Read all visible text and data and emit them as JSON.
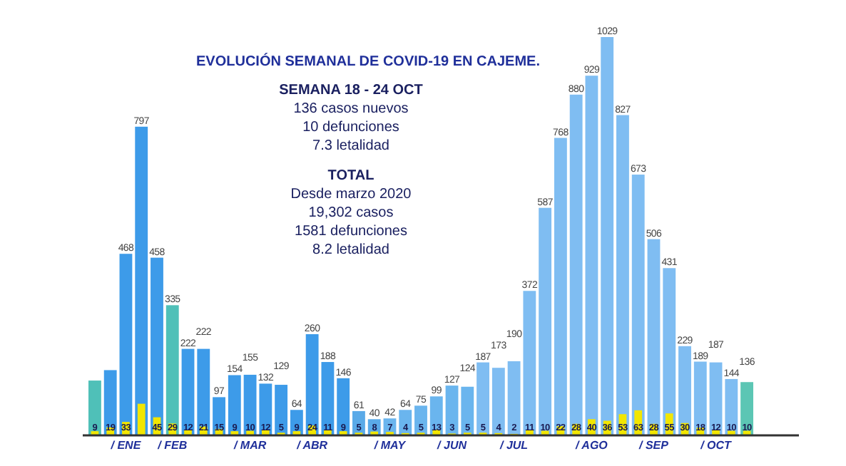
{
  "chart_data": {
    "type": "bar",
    "title": "EVOLUCIÓN SEMANAL DE COVID-19 EN CAJEME.",
    "annotations": [
      "SEMANA 18 - 24 OCT",
      "136 casos nuevos",
      "10 defunciones",
      "7.3 letalidad",
      "TOTAL",
      "Desde marzo 2020",
      "19,302 casos",
      "1581 defunciones",
      "8.2 letalidad"
    ],
    "categories": [
      null,
      null,
      "/ ENE",
      null,
      null,
      "/ FEB",
      null,
      null,
      null,
      null,
      "/ MAR",
      null,
      null,
      null,
      "/ ABR",
      null,
      null,
      null,
      null,
      "/ MAY",
      null,
      null,
      null,
      "/ JUN",
      null,
      null,
      null,
      "/ JUL",
      null,
      null,
      null,
      null,
      "/ AGO",
      null,
      null,
      null,
      "/ SEP",
      null,
      null,
      null,
      "/ OCT",
      null,
      null
    ],
    "series": [
      {
        "colors": [
          "#4fc0b8",
          "#3d9be9",
          "#3d9be9",
          "#3d9be9",
          "#3d9be9",
          "#4fc0b8",
          "#3d9be9",
          "#3d9be9",
          "#3d9be9",
          "#3d9be9",
          "#3d9be9",
          "#3d9be9",
          "#3d9be9",
          "#3d9be9",
          "#3d9be9",
          "#3d9be9",
          "#3d9be9",
          "#5aaae8",
          "#5aaae8",
          "#6ab5ee",
          "#6ab5ee",
          "#6ab5ee",
          "#6ab5ee",
          "#6ab5ee",
          "#6ab5ee",
          "#7fbdf2",
          "#7fbdf2",
          "#7fbdf2",
          "#7fbdf2",
          "#7fbdf2",
          "#7fbdf2",
          "#7fbdf2",
          "#7fbdf2",
          "#7fbdf2",
          "#7fbdf2",
          "#7fbdf2",
          "#7fbdf2",
          "#7fbdf2",
          "#7fbdf2",
          "#7fbdf2",
          "#7fbdf2",
          "#7fbdf2",
          "#5cc6b4"
        ],
        "values": [
          140,
          167,
          468,
          797,
          458,
          335,
          222,
          222,
          97,
          154,
          155,
          132,
          129,
          64,
          260,
          188,
          146,
          61,
          40,
          42,
          64,
          75,
          99,
          127,
          124,
          187,
          173,
          190,
          372,
          587,
          768,
          880,
          929,
          1029,
          827,
          673,
          506,
          431,
          229,
          189,
          187,
          144,
          136
        ],
        "value_labels": [
          null,
          null,
          "468",
          "797",
          "458",
          "335",
          "222",
          "222",
          "97",
          "154",
          "155",
          "132",
          "129",
          "64",
          "260",
          "188",
          "146",
          "61",
          "40",
          "42",
          "64",
          "75",
          "99",
          "127",
          "124",
          "187",
          "173",
          "190",
          "372",
          "587",
          "768",
          "880",
          "929",
          "1029",
          "827",
          "673",
          "506",
          "431",
          "229",
          "189",
          "187",
          "144",
          "136"
        ]
      },
      {
        "color": "#f2e600",
        "values": [
          9,
          19,
          33,
          80,
          45,
          29,
          12,
          21,
          15,
          9,
          10,
          12,
          5,
          9,
          24,
          11,
          9,
          5,
          8,
          7,
          4,
          5,
          13,
          3,
          5,
          5,
          4,
          2,
          11,
          10,
          22,
          28,
          40,
          36,
          53,
          63,
          28,
          55,
          30,
          18,
          12,
          10,
          10
        ],
        "value_labels": [
          "9",
          "19",
          "33",
          null,
          "45",
          "29",
          "12",
          "21",
          "15",
          "9",
          "10",
          "12",
          "5",
          "9",
          "24",
          "11",
          "9",
          "5",
          "8",
          "7",
          "4",
          "5",
          "13",
          "3",
          "5",
          "5",
          "4",
          "2",
          "11",
          "10",
          "22",
          "28",
          "40",
          "36",
          "53",
          "63",
          "28",
          "55",
          "30",
          "18",
          "12",
          "10",
          "10"
        ]
      }
    ]
  }
}
